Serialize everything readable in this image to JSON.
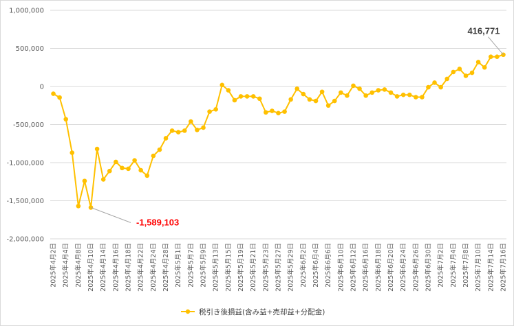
{
  "chart_data": {
    "type": "line",
    "title": "",
    "xlabel": "",
    "ylabel": "",
    "ylim": [
      -2000000,
      1000000
    ],
    "y_ticks": [
      "1,000,000",
      "500,000",
      "0",
      "-500,000",
      "-1,000,000",
      "-1,500,000",
      "-2,000,000"
    ],
    "y_tick_values": [
      1000000,
      500000,
      0,
      -500000,
      -1000000,
      -1500000,
      -2000000
    ],
    "grid": true,
    "legend_position": "bottom",
    "line_color": "#FFC000",
    "categories": [
      "2025年4月2日",
      "",
      "2025年4月4日",
      "",
      "2025年4月8日",
      "",
      "2025年4月10日",
      "",
      "2025年4月14日",
      "",
      "2025年4月16日",
      "",
      "2025年4月18日",
      "",
      "2025年4月22日",
      "",
      "2025年4月24日",
      "",
      "2025年4月28日",
      "",
      "2025年5月1日",
      "",
      "2025年5月7日",
      "",
      "2025年5月9日",
      "",
      "2025年5月13日",
      "",
      "2025年5月15日",
      "",
      "2025年5月19日",
      "",
      "2025年5月21日",
      "",
      "2025年5月23日",
      "",
      "2025年5月27日",
      "",
      "2025年5月29日",
      "",
      "2025年6月2日",
      "",
      "2025年6月4日",
      "",
      "2025年6月6日",
      "",
      "2025年6月10日",
      "",
      "2025年6月12日",
      "",
      "2025年6月16日",
      "",
      "2025年6月18日",
      "",
      "2025年6月20日",
      "",
      "2025年6月24日",
      "",
      "2025年6月26日",
      "",
      "2025年6月30日",
      "",
      "2025年7月2日",
      "",
      "2025年7月4日",
      "",
      "2025年7月8日",
      "",
      "2025年7月10日",
      "",
      "2025年7月14日",
      "",
      "2025年7月16日"
    ],
    "series": [
      {
        "name": "税引き後損益(含み益+売却益+分配金)",
        "values": [
          -95000,
          -145000,
          -430000,
          -870000,
          -1570000,
          -1240000,
          -1589103,
          -820000,
          -1220000,
          -1110000,
          -990000,
          -1070000,
          -1080000,
          -970000,
          -1100000,
          -1170000,
          -910000,
          -830000,
          -680000,
          -580000,
          -600000,
          -580000,
          -460000,
          -570000,
          -540000,
          -330000,
          -300000,
          20000,
          -50000,
          -180000,
          -130000,
          -130000,
          -130000,
          -160000,
          -340000,
          -320000,
          -350000,
          -330000,
          -170000,
          -30000,
          -100000,
          -170000,
          -190000,
          -70000,
          -250000,
          -190000,
          -80000,
          -120000,
          10000,
          -30000,
          -120000,
          -80000,
          -50000,
          -40000,
          -80000,
          -130000,
          -110000,
          -110000,
          -140000,
          -140000,
          -10000,
          50000,
          -10000,
          100000,
          190000,
          230000,
          140000,
          180000,
          320000,
          250000,
          390000,
          390000,
          416771
        ]
      }
    ],
    "annotations": [
      {
        "text": "-1,589,103",
        "point_index": 6,
        "color": "#FF0000"
      },
      {
        "text": "416,771",
        "point_index": 72,
        "color": "#404040"
      }
    ]
  }
}
